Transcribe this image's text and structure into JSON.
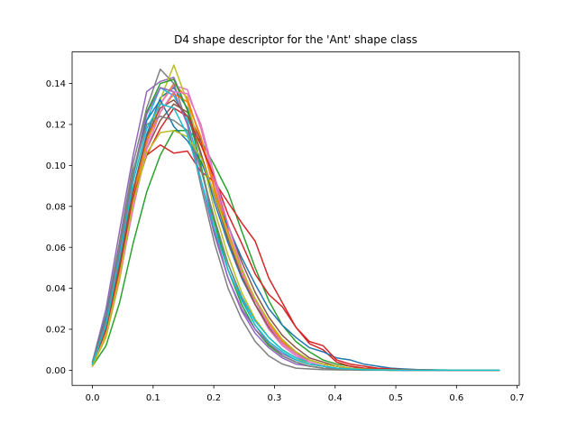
{
  "chart_data": {
    "type": "line",
    "title": "D4 shape descriptor for the 'Ant' shape class",
    "xlabel": "",
    "ylabel": "",
    "xlim": [
      -0.0335,
      0.7035
    ],
    "ylim": [
      -0.0074,
      0.1554
    ],
    "grid": false,
    "legend": "none",
    "x_ticks": [
      0.0,
      0.1,
      0.2,
      0.3,
      0.4,
      0.5,
      0.6,
      0.7
    ],
    "x_tick_labels": [
      "0.0",
      "0.1",
      "0.2",
      "0.3",
      "0.4",
      "0.5",
      "0.6",
      "0.7"
    ],
    "y_ticks": [
      0.0,
      0.02,
      0.04,
      0.06,
      0.08,
      0.1,
      0.12,
      0.14
    ],
    "y_tick_labels": [
      "0.00",
      "0.02",
      "0.04",
      "0.06",
      "0.08",
      "0.10",
      "0.12",
      "0.14"
    ],
    "x": [
      0.0,
      0.0224,
      0.0447,
      0.0671,
      0.0894,
      0.1118,
      0.1341,
      0.1565,
      0.1788,
      0.2012,
      0.2235,
      0.2459,
      0.2682,
      0.2906,
      0.3129,
      0.3353,
      0.3576,
      0.38,
      0.4023,
      0.4247,
      0.447,
      0.4694,
      0.4917,
      0.5141,
      0.5364,
      0.5588,
      0.5811,
      0.6035,
      0.6258,
      0.6482,
      0.67
    ],
    "series": [
      {
        "color": "#1f77b4",
        "values": [
          0.003,
          0.022,
          0.052,
          0.088,
          0.115,
          0.133,
          0.138,
          0.128,
          0.105,
          0.082,
          0.062,
          0.045,
          0.032,
          0.022,
          0.014,
          0.009,
          0.005,
          0.003,
          0.002,
          0.001,
          0.001,
          0.0005,
          0.0003,
          0.0002,
          0.0001,
          0.0,
          0.0,
          0.0,
          0.0,
          0.0,
          0.0
        ]
      },
      {
        "color": "#ff7f0e",
        "values": [
          0.003,
          0.02,
          0.05,
          0.085,
          0.112,
          0.13,
          0.14,
          0.133,
          0.112,
          0.088,
          0.066,
          0.048,
          0.034,
          0.023,
          0.015,
          0.009,
          0.005,
          0.003,
          0.002,
          0.001,
          0.0006,
          0.0004,
          0.0002,
          0.0001,
          0.0,
          0.0,
          0.0,
          0.0,
          0.0,
          0.0,
          0.0
        ]
      },
      {
        "color": "#2ca02c",
        "values": [
          0.002,
          0.012,
          0.033,
          0.062,
          0.087,
          0.105,
          0.117,
          0.117,
          0.112,
          0.1,
          0.087,
          0.068,
          0.05,
          0.034,
          0.022,
          0.014,
          0.009,
          0.005,
          0.003,
          0.002,
          0.001,
          0.0008,
          0.0005,
          0.0003,
          0.0002,
          0.0001,
          0.0,
          0.0,
          0.0,
          0.0,
          0.0
        ]
      },
      {
        "color": "#d62728",
        "values": [
          0.003,
          0.022,
          0.055,
          0.087,
          0.105,
          0.11,
          0.106,
          0.107,
          0.097,
          0.092,
          0.082,
          0.072,
          0.063,
          0.045,
          0.033,
          0.021,
          0.013,
          0.01,
          0.004,
          0.002,
          0.001,
          0.0008,
          0.0005,
          0.0003,
          0.0002,
          0.0001,
          0.0,
          0.0,
          0.0,
          0.0,
          0.0
        ]
      },
      {
        "color": "#9467bd",
        "values": [
          0.004,
          0.03,
          0.068,
          0.105,
          0.136,
          0.141,
          0.143,
          0.127,
          0.1,
          0.068,
          0.045,
          0.029,
          0.018,
          0.011,
          0.006,
          0.003,
          0.002,
          0.001,
          0.0005,
          0.0003,
          0.0002,
          0.0001,
          0.0,
          0.0,
          0.0,
          0.0,
          0.0,
          0.0,
          0.0,
          0.0,
          0.0
        ]
      },
      {
        "color": "#8c564b",
        "values": [
          0.003,
          0.02,
          0.048,
          0.082,
          0.108,
          0.122,
          0.13,
          0.126,
          0.112,
          0.092,
          0.071,
          0.053,
          0.038,
          0.026,
          0.017,
          0.011,
          0.006,
          0.004,
          0.002,
          0.001,
          0.0006,
          0.0004,
          0.0002,
          0.0001,
          0.0,
          0.0,
          0.0,
          0.0,
          0.0,
          0.0,
          0.0
        ]
      },
      {
        "color": "#e377c2",
        "values": [
          0.003,
          0.018,
          0.046,
          0.08,
          0.11,
          0.13,
          0.139,
          0.137,
          0.118,
          0.092,
          0.068,
          0.048,
          0.032,
          0.02,
          0.012,
          0.007,
          0.004,
          0.002,
          0.001,
          0.0006,
          0.0003,
          0.0002,
          0.0001,
          0.0,
          0.0,
          0.0,
          0.0,
          0.0,
          0.0,
          0.0,
          0.0
        ]
      },
      {
        "color": "#7f7f7f",
        "values": [
          0.004,
          0.027,
          0.063,
          0.101,
          0.128,
          0.147,
          0.14,
          0.12,
          0.09,
          0.062,
          0.04,
          0.025,
          0.014,
          0.007,
          0.003,
          0.001,
          0.0006,
          0.0003,
          0.0002,
          0.0001,
          0.0,
          0.0,
          0.0,
          0.0,
          0.0,
          0.0,
          0.0,
          0.0,
          0.0,
          0.0,
          0.0
        ]
      },
      {
        "color": "#bcbd22",
        "values": [
          0.002,
          0.016,
          0.044,
          0.08,
          0.112,
          0.132,
          0.149,
          0.131,
          0.106,
          0.078,
          0.056,
          0.038,
          0.025,
          0.016,
          0.01,
          0.006,
          0.003,
          0.002,
          0.001,
          0.0006,
          0.0003,
          0.0002,
          0.0001,
          0.0,
          0.0,
          0.0,
          0.0,
          0.0,
          0.0,
          0.0,
          0.0
        ]
      },
      {
        "color": "#17becf",
        "values": [
          0.003,
          0.024,
          0.058,
          0.095,
          0.122,
          0.138,
          0.134,
          0.122,
          0.098,
          0.073,
          0.052,
          0.036,
          0.024,
          0.016,
          0.01,
          0.006,
          0.004,
          0.002,
          0.001,
          0.0006,
          0.0004,
          0.0002,
          0.0001,
          0.0,
          0.0,
          0.0,
          0.0,
          0.0,
          0.0,
          0.0,
          0.0
        ]
      },
      {
        "color": "#1f77b4",
        "values": [
          0.004,
          0.026,
          0.06,
          0.097,
          0.122,
          0.132,
          0.119,
          0.112,
          0.102,
          0.086,
          0.07,
          0.055,
          0.042,
          0.03,
          0.022,
          0.016,
          0.011,
          0.009,
          0.006,
          0.005,
          0.003,
          0.002,
          0.001,
          0.0006,
          0.0003,
          0.0002,
          0.0001,
          0.0,
          0.0,
          0.0,
          0.0
        ]
      },
      {
        "color": "#ff7f0e",
        "values": [
          0.003,
          0.019,
          0.048,
          0.084,
          0.112,
          0.126,
          0.135,
          0.131,
          0.114,
          0.089,
          0.067,
          0.049,
          0.034,
          0.023,
          0.014,
          0.008,
          0.005,
          0.003,
          0.002,
          0.001,
          0.0005,
          0.0003,
          0.0002,
          0.0001,
          0.0,
          0.0,
          0.0,
          0.0,
          0.0,
          0.0,
          0.0
        ]
      },
      {
        "color": "#2ca02c",
        "values": [
          0.003,
          0.022,
          0.056,
          0.095,
          0.126,
          0.14,
          0.142,
          0.127,
          0.1,
          0.072,
          0.049,
          0.032,
          0.02,
          0.012,
          0.007,
          0.004,
          0.002,
          0.001,
          0.0006,
          0.0003,
          0.0002,
          0.0001,
          0.0,
          0.0,
          0.0,
          0.0,
          0.0,
          0.0,
          0.0,
          0.0,
          0.0
        ]
      },
      {
        "color": "#d62728",
        "values": [
          0.003,
          0.02,
          0.05,
          0.084,
          0.105,
          0.118,
          0.128,
          0.124,
          0.11,
          0.094,
          0.076,
          0.062,
          0.047,
          0.037,
          0.031,
          0.021,
          0.014,
          0.012,
          0.005,
          0.003,
          0.002,
          0.001,
          0.0006,
          0.0003,
          0.0002,
          0.0001,
          0.0,
          0.0,
          0.0,
          0.0,
          0.0
        ]
      },
      {
        "color": "#9467bd",
        "values": [
          0.003,
          0.024,
          0.058,
          0.096,
          0.125,
          0.138,
          0.136,
          0.12,
          0.093,
          0.066,
          0.045,
          0.03,
          0.02,
          0.013,
          0.008,
          0.005,
          0.003,
          0.002,
          0.001,
          0.0006,
          0.0003,
          0.0002,
          0.0001,
          0.0,
          0.0,
          0.0,
          0.0,
          0.0,
          0.0,
          0.0,
          0.0
        ]
      },
      {
        "color": "#8c564b",
        "values": [
          0.003,
          0.021,
          0.052,
          0.088,
          0.114,
          0.128,
          0.132,
          0.124,
          0.106,
          0.085,
          0.064,
          0.046,
          0.032,
          0.021,
          0.013,
          0.008,
          0.005,
          0.003,
          0.002,
          0.001,
          0.0005,
          0.0003,
          0.0002,
          0.0001,
          0.0,
          0.0,
          0.0,
          0.0,
          0.0,
          0.0,
          0.0
        ]
      },
      {
        "color": "#e377c2",
        "values": [
          0.003,
          0.017,
          0.045,
          0.079,
          0.108,
          0.126,
          0.136,
          0.135,
          0.12,
          0.095,
          0.071,
          0.05,
          0.034,
          0.022,
          0.013,
          0.008,
          0.004,
          0.002,
          0.001,
          0.0006,
          0.0003,
          0.0002,
          0.0001,
          0.0,
          0.0,
          0.0,
          0.0,
          0.0,
          0.0,
          0.0,
          0.0
        ]
      },
      {
        "color": "#7f7f7f",
        "values": [
          0.004,
          0.025,
          0.06,
          0.097,
          0.12,
          0.124,
          0.122,
          0.117,
          0.098,
          0.074,
          0.052,
          0.035,
          0.022,
          0.013,
          0.007,
          0.004,
          0.002,
          0.001,
          0.0006,
          0.0003,
          0.0002,
          0.0001,
          0.0,
          0.0,
          0.0,
          0.0,
          0.0,
          0.0,
          0.0,
          0.0,
          0.0
        ]
      },
      {
        "color": "#bcbd22",
        "values": [
          0.002,
          0.017,
          0.046,
          0.082,
          0.106,
          0.116,
          0.117,
          0.114,
          0.104,
          0.086,
          0.066,
          0.049,
          0.035,
          0.024,
          0.015,
          0.009,
          0.005,
          0.003,
          0.002,
          0.001,
          0.0005,
          0.0003,
          0.0002,
          0.0001,
          0.0,
          0.0,
          0.0,
          0.0,
          0.0,
          0.0,
          0.0
        ]
      },
      {
        "color": "#17becf",
        "values": [
          0.003,
          0.022,
          0.055,
          0.092,
          0.118,
          0.13,
          0.128,
          0.115,
          0.093,
          0.069,
          0.049,
          0.034,
          0.022,
          0.014,
          0.009,
          0.005,
          0.003,
          0.002,
          0.001,
          0.0006,
          0.0003,
          0.0002,
          0.0001,
          0.0,
          0.0,
          0.0,
          0.0,
          0.0,
          0.0,
          0.0,
          0.0
        ]
      }
    ]
  }
}
